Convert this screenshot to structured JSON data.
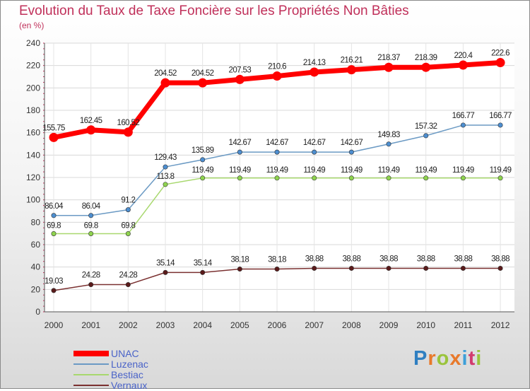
{
  "title": "Evolution du Taux de Taxe Foncière sur les Propriétés Non Bâties",
  "subtitle": "(en %)",
  "logo": "Proxiti",
  "chart_data": {
    "type": "line",
    "title": "Evolution du Taux de Taxe Foncière sur les Propriétés Non Bâties",
    "ylabel": "(en %)",
    "xlabel": "",
    "ylim": [
      0,
      240
    ],
    "yticks": [
      0,
      20,
      40,
      60,
      80,
      100,
      120,
      140,
      160,
      180,
      200,
      220,
      240
    ],
    "grid": true,
    "legend_position": "bottom-left",
    "categories": [
      "2000",
      "2001",
      "2002",
      "2003",
      "2004",
      "2005",
      "2006",
      "2007",
      "2008",
      "2009",
      "2010",
      "2011",
      "2012"
    ],
    "series": [
      {
        "name": "UNAC",
        "color": "#ff0000",
        "values": [
          155.75,
          162.45,
          160.52,
          204.52,
          204.52,
          207.53,
          210.6,
          214.13,
          216.21,
          218.37,
          218.39,
          220.4,
          222.6
        ],
        "labels": [
          "155.75",
          "162.45",
          "160.52",
          "204.52",
          "204.52",
          "207.53",
          "210.6",
          "214.13",
          "216.21",
          "218.37",
          "218.39",
          "220.4",
          "222.6"
        ]
      },
      {
        "name": "Luzenac",
        "color": "#6b9ac4",
        "values": [
          86.04,
          86.04,
          91.2,
          129.43,
          135.89,
          142.67,
          142.67,
          142.67,
          142.67,
          149.83,
          157.32,
          166.77,
          166.77
        ],
        "labels": [
          "86.04",
          "86.04",
          "91.2",
          "129.43",
          "135.89",
          "142.67",
          "142.67",
          "142.67",
          "142.67",
          "149.83",
          "157.32",
          "166.77",
          "166.77"
        ]
      },
      {
        "name": "Bestiac",
        "color": "#a8d86e",
        "values": [
          69.8,
          69.8,
          69.8,
          113.8,
          119.49,
          119.49,
          119.49,
          119.49,
          119.49,
          119.49,
          119.49,
          119.49,
          119.49
        ],
        "labels": [
          "69.8",
          "69.8",
          "69.8",
          "113.8",
          "119.49",
          "119.49",
          "119.49",
          "119.49",
          "119.49",
          "119.49",
          "119.49",
          "119.49",
          "119.49"
        ]
      },
      {
        "name": "Vernaux",
        "color": "#7a3030",
        "values": [
          19.03,
          24.28,
          24.28,
          35.14,
          35.14,
          38.18,
          38.18,
          38.88,
          38.88,
          38.88,
          38.88,
          38.88,
          38.88
        ],
        "labels": [
          "19.03",
          "24.28",
          "24.28",
          "35.14",
          "35.14",
          "38.18",
          "38.18",
          "38.88",
          "38.88",
          "38.88",
          "38.88",
          "38.88",
          "38.88"
        ]
      }
    ]
  }
}
